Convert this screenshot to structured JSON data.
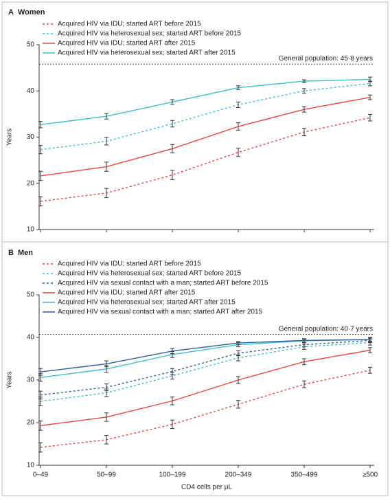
{
  "chart_data": [
    {
      "type": "line",
      "panel": "A",
      "title": "Women",
      "ylabel": "Years",
      "ylim": [
        10,
        50
      ],
      "yticks": [
        10,
        20,
        30,
        40,
        50
      ],
      "reference_line": {
        "value": 45.8,
        "label": "General population: 45·8 years"
      },
      "series": [
        {
          "name": "Acquired HIV via IDU; started ART before 2015",
          "color": "#e8453c",
          "linestyle": "dashed",
          "values": [
            16.1,
            17.9,
            21.8,
            26.7,
            31.1,
            34.2
          ],
          "errors": [
            1.0,
            1.0,
            1.0,
            0.9,
            0.8,
            0.7
          ]
        },
        {
          "name": "Acquired HIV via heterosexual sex; started ART before 2015",
          "color": "#3fbcd0",
          "linestyle": "dashed",
          "values": [
            27.3,
            29.1,
            32.9,
            37.0,
            40.0,
            41.6
          ],
          "errors": [
            0.9,
            0.8,
            0.7,
            0.6,
            0.5,
            0.5
          ]
        },
        {
          "name": "Acquired HIV via IDU; started ART after 2015",
          "color": "#e8453c",
          "linestyle": "solid",
          "values": [
            21.6,
            23.6,
            27.5,
            32.3,
            36.0,
            38.6
          ],
          "errors": [
            1.0,
            1.0,
            0.9,
            0.8,
            0.6,
            0.5
          ]
        },
        {
          "name": "Acquired HIV via heterosexual sex; started ART after 2015",
          "color": "#3fbcd0",
          "linestyle": "solid",
          "values": [
            32.7,
            34.5,
            37.6,
            40.7,
            42.1,
            42.5
          ],
          "errors": [
            0.7,
            0.6,
            0.5,
            0.4,
            0.3,
            0.5
          ]
        }
      ]
    },
    {
      "type": "line",
      "panel": "B",
      "title": "Men",
      "ylabel": "Years",
      "xlabel": "CD4 cells per µL",
      "categories": [
        "0–49",
        "50–99",
        "100–199",
        "200–349",
        "350–499",
        "≥500"
      ],
      "ylim": [
        10,
        50
      ],
      "yticks": [
        10,
        20,
        30,
        40,
        50
      ],
      "reference_line": {
        "value": 40.7,
        "label": "General population: 40·7 years"
      },
      "series": [
        {
          "name": "Acquired HIV via IDU; started ART before 2015",
          "color": "#e8453c",
          "linestyle": "dashed",
          "values": [
            14.2,
            16.0,
            19.6,
            24.3,
            29.0,
            32.3
          ],
          "errors": [
            1.1,
            1.0,
            1.0,
            0.9,
            0.8,
            0.7
          ]
        },
        {
          "name": "Acquired HIV via heterosexual sex; started ART before 2015",
          "color": "#3fbcd0",
          "linestyle": "dashed",
          "values": [
            25.0,
            27.0,
            31.0,
            35.2,
            37.8,
            38.8
          ],
          "errors": [
            1.0,
            0.9,
            0.8,
            0.7,
            0.6,
            0.6
          ]
        },
        {
          "name": "Acquired HIV via sexual contact with a man; started ART before 2015",
          "color": "#2e5e9e",
          "linestyle": "dashed",
          "values": [
            26.5,
            28.3,
            32.0,
            36.3,
            38.3,
            39.3
          ],
          "errors": [
            0.9,
            0.8,
            0.7,
            0.6,
            0.5,
            0.5
          ]
        },
        {
          "name": "Acquired HIV via IDU; started ART after 2015",
          "color": "#e8453c",
          "linestyle": "solid",
          "values": [
            19.3,
            21.3,
            25.1,
            30.0,
            34.3,
            37.0
          ],
          "errors": [
            1.1,
            1.0,
            0.9,
            0.8,
            0.7,
            0.6
          ]
        },
        {
          "name": "Acquired HIV via heterosexual sex; started ART after 2015",
          "color": "#3fbcd0",
          "linestyle": "solid",
          "values": [
            30.6,
            32.6,
            36.0,
            38.3,
            39.2,
            39.5
          ],
          "errors": [
            0.9,
            0.8,
            0.7,
            0.5,
            0.4,
            0.5
          ]
        },
        {
          "name": "Acquired HIV via sexual contact with a man; started ART after 2015",
          "color": "#2e5e9e",
          "linestyle": "solid",
          "values": [
            31.9,
            33.8,
            36.8,
            38.7,
            39.3,
            39.5
          ],
          "errors": [
            0.8,
            0.7,
            0.6,
            0.4,
            0.4,
            0.4
          ]
        }
      ]
    }
  ]
}
